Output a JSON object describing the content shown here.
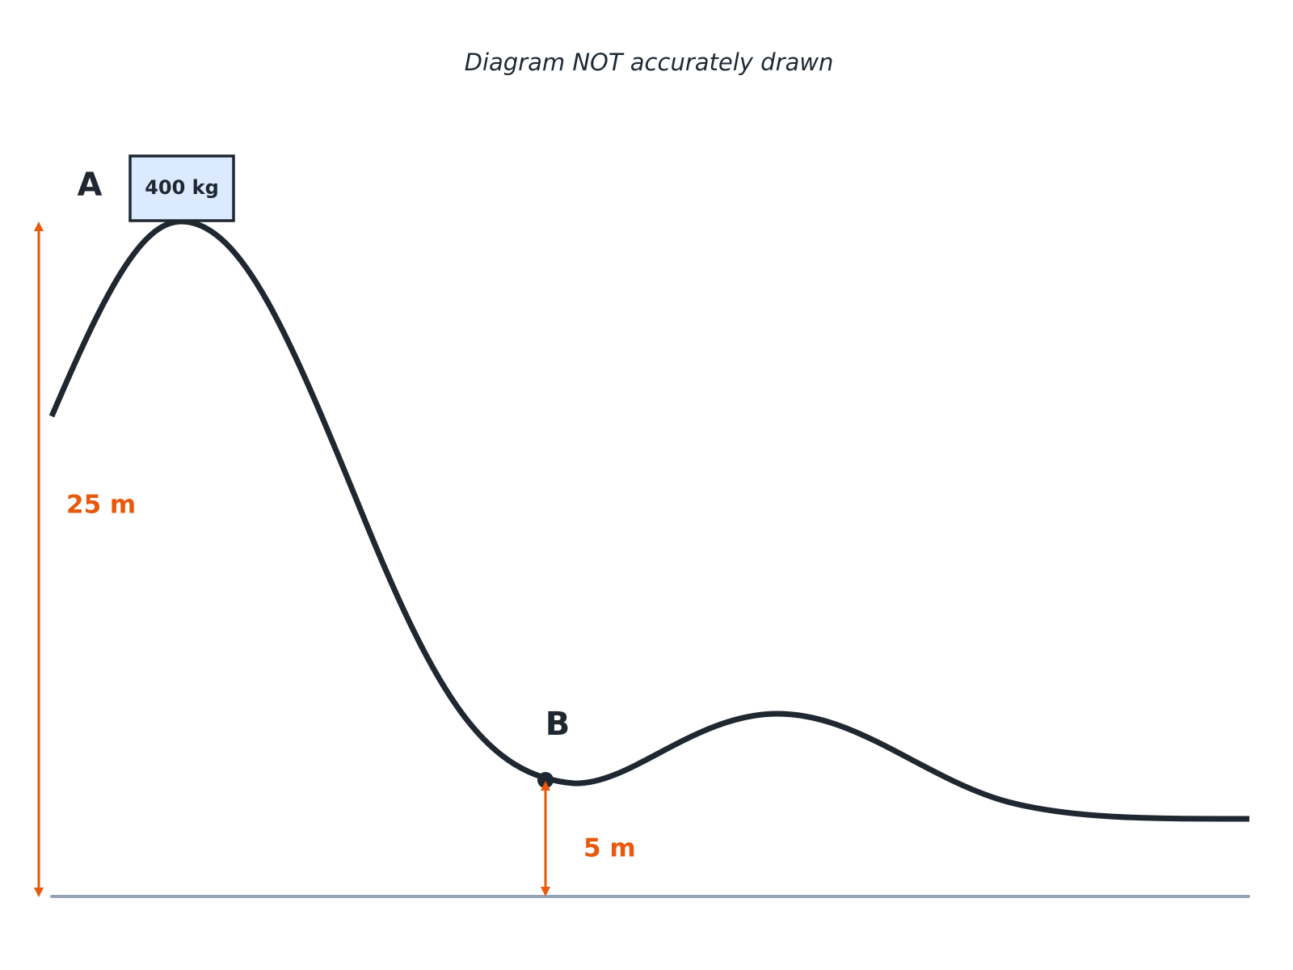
{
  "note": "Diagram NOT accurately drawn",
  "point_a": {
    "label": "A",
    "mass": "400 kg",
    "height": "25 m"
  },
  "point_b": {
    "label": "B",
    "height": "5 m"
  }
}
